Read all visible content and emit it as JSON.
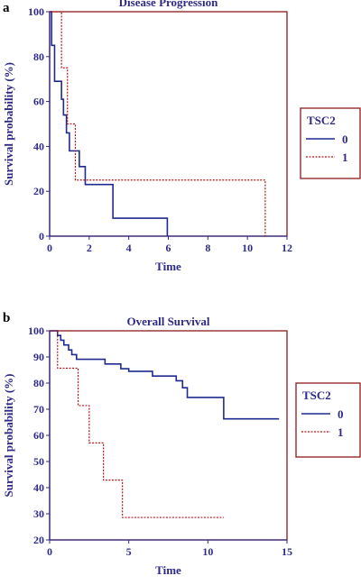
{
  "colors": {
    "frame": "#8b1a1a",
    "text": "#2e2a86",
    "tsc0": "#1f2a8f",
    "tsc1": "#b01818"
  },
  "chart_data": [
    {
      "type": "line",
      "panel_label": "a",
      "title": "Disease Progression",
      "xlabel": "Time",
      "ylabel": "Survival probability (%)",
      "xlim": [
        0,
        12
      ],
      "ylim": [
        0,
        100
      ],
      "xticks": [
        0,
        2,
        4,
        6,
        8,
        10,
        12
      ],
      "yticks": [
        0,
        20,
        40,
        60,
        80,
        100
      ],
      "grid": false,
      "legend": {
        "title": "TSC2",
        "placement": "right",
        "entries": [
          "0",
          "1"
        ]
      },
      "series": [
        {
          "name": "0",
          "style": "solid",
          "steps": [
            [
              0,
              100
            ],
            [
              0.1,
              85
            ],
            [
              0.25,
              69
            ],
            [
              0.6,
              61
            ],
            [
              0.7,
              54
            ],
            [
              0.85,
              46
            ],
            [
              1.0,
              38
            ],
            [
              1.5,
              31
            ],
            [
              1.8,
              23
            ],
            [
              3.2,
              8
            ],
            [
              5.95,
              0
            ]
          ]
        },
        {
          "name": "1",
          "style": "dotted",
          "steps": [
            [
              0,
              100
            ],
            [
              0.6,
              75
            ],
            [
              0.9,
              50
            ],
            [
              1.3,
              25
            ],
            [
              10.9,
              0
            ]
          ]
        }
      ]
    },
    {
      "type": "line",
      "panel_label": "b",
      "title": "Overall Survival",
      "xlabel": "Time",
      "ylabel": "Survival probability (%)",
      "xlim": [
        0,
        15
      ],
      "ylim": [
        20,
        100
      ],
      "xticks": [
        0,
        5,
        10,
        15
      ],
      "yticks": [
        20,
        30,
        40,
        50,
        60,
        70,
        80,
        90,
        100
      ],
      "grid": false,
      "legend": {
        "title": "TSC2",
        "placement": "right",
        "entries": [
          "0",
          "1"
        ]
      },
      "series": [
        {
          "name": "0",
          "style": "solid",
          "end": 14.5,
          "steps": [
            [
              0,
              100
            ],
            [
              0.5,
              98.2
            ],
            [
              0.7,
              96.4
            ],
            [
              0.9,
              94.6
            ],
            [
              1.2,
              92.7
            ],
            [
              1.4,
              90.9
            ],
            [
              1.7,
              89.1
            ],
            [
              3.5,
              87.3
            ],
            [
              4.5,
              85.5
            ],
            [
              5.0,
              84.5
            ],
            [
              6.5,
              82.7
            ],
            [
              8.0,
              80.9
            ],
            [
              8.4,
              78.2
            ],
            [
              8.7,
              74.5
            ],
            [
              11.0,
              66.3
            ]
          ]
        },
        {
          "name": "1",
          "style": "dotted",
          "end": 11.0,
          "steps": [
            [
              0,
              100
            ],
            [
              0.5,
              85.7
            ],
            [
              1.8,
              71.4
            ],
            [
              2.5,
              57.1
            ],
            [
              3.4,
              42.9
            ],
            [
              4.6,
              28.6
            ]
          ]
        }
      ]
    }
  ]
}
